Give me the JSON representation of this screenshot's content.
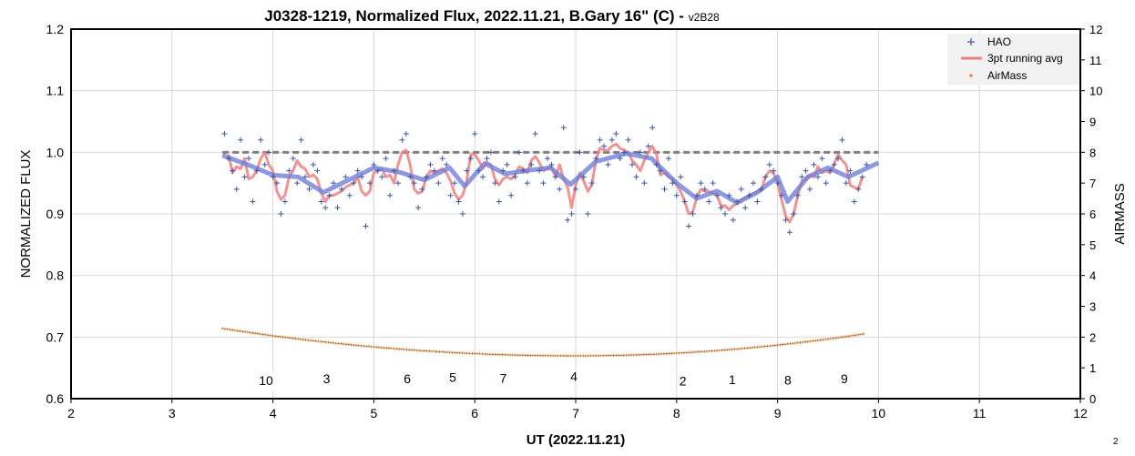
{
  "chart_data": {
    "type": "scatter",
    "title": "J0328-1219, Normalized Flux, 2022.11.21, B.Gary 16\" (C) - ",
    "title_version": "v2B28",
    "xlabel": "UT (2022.11.21)",
    "ylabel": "NORMALIZED FLUX",
    "y2label": "AIRMASS",
    "xlim": [
      2,
      12
    ],
    "ylim": [
      0.6,
      1.2
    ],
    "y2lim": [
      0,
      12
    ],
    "xticks": [
      "2",
      "3",
      "4",
      "5",
      "6",
      "7",
      "8",
      "9",
      "10",
      "11",
      "12"
    ],
    "yticks": [
      "0.6",
      "0.7",
      "0.8",
      "0.9",
      "1.0",
      "1.1",
      "1.2"
    ],
    "y2ticks": [
      "0",
      "1",
      "2",
      "3",
      "4",
      "5",
      "6",
      "7",
      "8",
      "9",
      "10",
      "11",
      "12"
    ],
    "grid": true,
    "legend_position": "top-right",
    "legend": [
      "HAO",
      "3pt running avg",
      "AirMass"
    ],
    "colors": {
      "hao": "#3a55a8",
      "avg": "#f08080",
      "model": "#7080d8",
      "airmass": "#c07020",
      "reference": "#808080"
    },
    "reference_line": {
      "y": 1.0,
      "x": [
        3.5,
        10.0
      ]
    },
    "corner_note": "2",
    "hao": [
      [
        3.52,
        1.03
      ],
      [
        3.56,
        0.99
      ],
      [
        3.6,
        0.97
      ],
      [
        3.64,
        0.94
      ],
      [
        3.68,
        1.02
      ],
      [
        3.72,
        0.96
      ],
      [
        3.76,
        0.99
      ],
      [
        3.8,
        0.92
      ],
      [
        3.84,
        0.97
      ],
      [
        3.88,
        1.02
      ],
      [
        3.92,
        0.98
      ],
      [
        3.96,
        1.0
      ],
      [
        4.0,
        0.96
      ],
      [
        4.04,
        0.95
      ],
      [
        4.08,
        0.9
      ],
      [
        4.12,
        0.92
      ],
      [
        4.16,
        0.97
      ],
      [
        4.2,
        0.99
      ],
      [
        4.24,
        0.95
      ],
      [
        4.28,
        1.02
      ],
      [
        4.32,
        0.96
      ],
      [
        4.36,
        0.94
      ],
      [
        4.4,
        0.98
      ],
      [
        4.44,
        0.97
      ],
      [
        4.48,
        0.92
      ],
      [
        4.52,
        0.91
      ],
      [
        4.56,
        0.93
      ],
      [
        4.6,
        0.95
      ],
      [
        4.64,
        0.91
      ],
      [
        4.68,
        0.94
      ],
      [
        4.72,
        0.96
      ],
      [
        4.76,
        0.93
      ],
      [
        4.8,
        0.95
      ],
      [
        4.84,
        0.97
      ],
      [
        4.88,
        0.96
      ],
      [
        4.92,
        0.88
      ],
      [
        4.96,
        0.95
      ],
      [
        5.0,
        0.98
      ],
      [
        5.04,
        0.97
      ],
      [
        5.08,
        0.96
      ],
      [
        5.12,
        0.99
      ],
      [
        5.16,
        0.93
      ],
      [
        5.2,
        0.97
      ],
      [
        5.24,
        0.95
      ],
      [
        5.28,
        1.02
      ],
      [
        5.32,
        1.03
      ],
      [
        5.36,
        0.96
      ],
      [
        5.4,
        0.95
      ],
      [
        5.44,
        0.91
      ],
      [
        5.48,
        0.94
      ],
      [
        5.52,
        0.96
      ],
      [
        5.56,
        0.98
      ],
      [
        5.6,
        0.97
      ],
      [
        5.64,
        0.95
      ],
      [
        5.68,
        0.99
      ],
      [
        5.72,
        0.98
      ],
      [
        5.76,
        0.93
      ],
      [
        5.8,
        0.95
      ],
      [
        5.84,
        0.92
      ],
      [
        5.88,
        0.9
      ],
      [
        5.92,
        0.97
      ],
      [
        5.96,
        0.99
      ],
      [
        6.0,
        1.03
      ],
      [
        6.04,
        0.97
      ],
      [
        6.08,
        0.96
      ],
      [
        6.12,
        0.99
      ],
      [
        6.16,
        1.0
      ],
      [
        6.2,
        0.95
      ],
      [
        6.24,
        0.92
      ],
      [
        6.28,
        0.97
      ],
      [
        6.32,
        0.98
      ],
      [
        6.36,
        0.93
      ],
      [
        6.4,
        0.96
      ],
      [
        6.44,
        1.0
      ],
      [
        6.48,
        0.97
      ],
      [
        6.52,
        0.95
      ],
      [
        6.56,
        0.98
      ],
      [
        6.6,
        1.03
      ],
      [
        6.64,
        0.97
      ],
      [
        6.68,
        0.95
      ],
      [
        6.72,
        0.99
      ],
      [
        6.76,
        0.98
      ],
      [
        6.8,
        0.96
      ],
      [
        6.84,
        0.94
      ],
      [
        6.88,
        1.04
      ],
      [
        6.92,
        0.89
      ],
      [
        6.96,
        0.9
      ],
      [
        7.0,
        0.94
      ],
      [
        7.04,
        1.0
      ],
      [
        7.08,
        0.96
      ],
      [
        7.12,
        0.9
      ],
      [
        7.16,
        0.95
      ],
      [
        7.2,
        0.99
      ],
      [
        7.24,
        1.02
      ],
      [
        7.28,
        1.01
      ],
      [
        7.32,
        0.98
      ],
      [
        7.36,
        1.02
      ],
      [
        7.4,
        1.03
      ],
      [
        7.44,
        0.99
      ],
      [
        7.48,
        1.0
      ],
      [
        7.52,
        1.02
      ],
      [
        7.56,
        0.98
      ],
      [
        7.6,
        0.96
      ],
      [
        7.64,
        1.0
      ],
      [
        7.68,
        0.95
      ],
      [
        7.72,
        1.01
      ],
      [
        7.76,
        1.04
      ],
      [
        7.8,
        0.98
      ],
      [
        7.84,
        0.97
      ],
      [
        7.88,
        0.94
      ],
      [
        7.92,
        0.99
      ],
      [
        7.96,
        0.95
      ],
      [
        8.0,
        0.93
      ],
      [
        8.04,
        0.96
      ],
      [
        8.08,
        0.92
      ],
      [
        8.12,
        0.88
      ],
      [
        8.16,
        0.9
      ],
      [
        8.2,
        0.93
      ],
      [
        8.24,
        0.95
      ],
      [
        8.28,
        0.94
      ],
      [
        8.32,
        0.92
      ],
      [
        8.36,
        0.95
      ],
      [
        8.4,
        0.93
      ],
      [
        8.44,
        0.91
      ],
      [
        8.48,
        0.9
      ],
      [
        8.52,
        0.93
      ],
      [
        8.56,
        0.89
      ],
      [
        8.6,
        0.92
      ],
      [
        8.64,
        0.94
      ],
      [
        8.68,
        0.91
      ],
      [
        8.72,
        0.93
      ],
      [
        8.76,
        0.95
      ],
      [
        8.8,
        0.92
      ],
      [
        8.84,
        0.94
      ],
      [
        8.88,
        0.96
      ],
      [
        8.92,
        0.98
      ],
      [
        8.96,
        0.97
      ],
      [
        9.0,
        0.95
      ],
      [
        9.04,
        0.93
      ],
      [
        9.08,
        0.89
      ],
      [
        9.12,
        0.87
      ],
      [
        9.16,
        0.9
      ],
      [
        9.2,
        0.93
      ],
      [
        9.24,
        0.96
      ],
      [
        9.28,
        0.97
      ],
      [
        9.32,
        0.94
      ],
      [
        9.36,
        0.98
      ],
      [
        9.4,
        0.96
      ],
      [
        9.44,
        0.99
      ],
      [
        9.48,
        0.95
      ],
      [
        9.52,
        0.97
      ],
      [
        9.56,
        0.98
      ],
      [
        9.6,
        0.99
      ],
      [
        9.64,
        1.02
      ],
      [
        9.68,
        0.95
      ],
      [
        9.72,
        0.97
      ],
      [
        9.76,
        0.92
      ],
      [
        9.8,
        0.94
      ],
      [
        9.84,
        0.96
      ],
      [
        9.88,
        0.98
      ]
    ],
    "model": [
      [
        3.5,
        0.995
      ],
      [
        3.75,
        0.98
      ],
      [
        4.0,
        0.963
      ],
      [
        4.25,
        0.96
      ],
      [
        4.5,
        0.935
      ],
      [
        4.75,
        0.955
      ],
      [
        5.0,
        0.975
      ],
      [
        5.25,
        0.968
      ],
      [
        5.5,
        0.955
      ],
      [
        5.75,
        0.975
      ],
      [
        5.9,
        0.945
      ],
      [
        6.1,
        0.982
      ],
      [
        6.3,
        0.965
      ],
      [
        6.5,
        0.97
      ],
      [
        6.75,
        0.975
      ],
      [
        6.95,
        0.948
      ],
      [
        7.2,
        0.985
      ],
      [
        7.5,
        0.998
      ],
      [
        7.75,
        0.99
      ],
      [
        8.0,
        0.95
      ],
      [
        8.2,
        0.925
      ],
      [
        8.4,
        0.937
      ],
      [
        8.6,
        0.918
      ],
      [
        8.8,
        0.935
      ],
      [
        9.0,
        0.96
      ],
      [
        9.1,
        0.92
      ],
      [
        9.3,
        0.96
      ],
      [
        9.5,
        0.975
      ],
      [
        9.7,
        0.96
      ],
      [
        10.0,
        0.983
      ]
    ],
    "airmass": {
      "x_start": 3.5,
      "x_end": 9.85,
      "x_min": 7.0,
      "min": 1.39,
      "start": 2.28,
      "end": 2.1
    },
    "annotations": [
      {
        "text": "10",
        "x": 3.95,
        "y": 0.45,
        "boxed": true
      },
      {
        "text": "3",
        "x": 4.55,
        "y": 0.5
      },
      {
        "text": "6",
        "x": 5.35,
        "y": 0.5
      },
      {
        "text": "5",
        "x": 5.8,
        "y": 0.55
      },
      {
        "text": "7",
        "x": 6.3,
        "y": 0.52
      },
      {
        "text": "4",
        "x": 7.0,
        "y": 0.57
      },
      {
        "text": "2",
        "x": 8.08,
        "y": 0.43
      },
      {
        "text": "1",
        "x": 8.57,
        "y": 0.48
      },
      {
        "text": "8",
        "x": 9.12,
        "y": 0.46
      },
      {
        "text": "9",
        "x": 9.68,
        "y": 0.5
      }
    ]
  }
}
